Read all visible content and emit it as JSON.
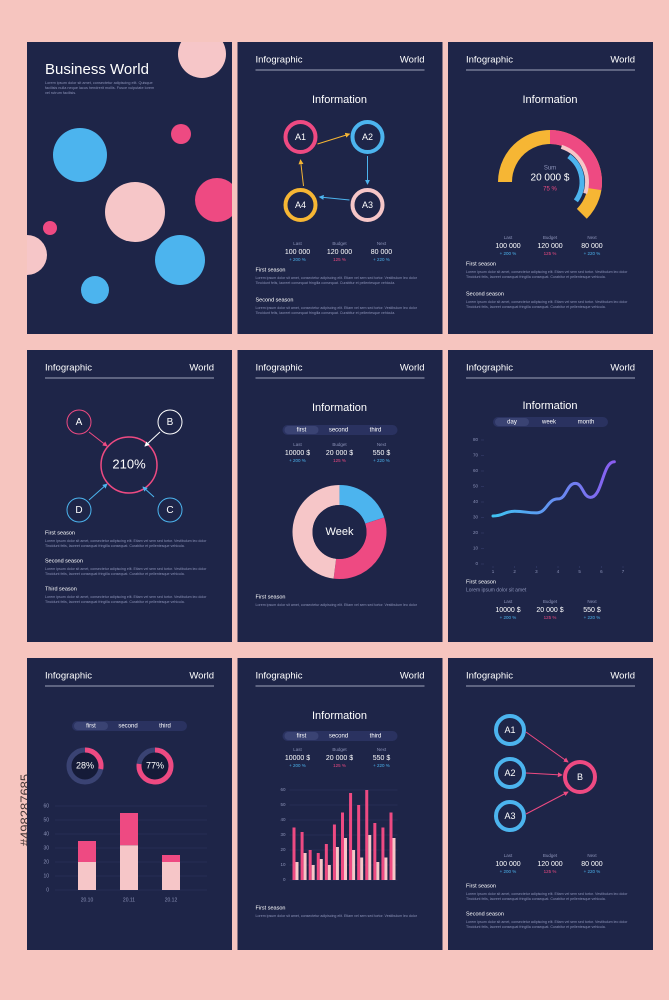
{
  "side_id": "#498287685",
  "cards": [
    {
      "kind": "cover",
      "title": "Business World",
      "text": [
        "Lorem ipsum dolor sit amet, consectetur adipiscing elit. Quisque",
        "facilisis nulla neque lacus hendrerit mollis. Fusce vulputate lorem",
        "vel rutrum facilisis."
      ]
    },
    {
      "kind": "cycle",
      "header": {
        "left": "Infographic",
        "right": "World"
      },
      "title": "Information",
      "nodes": [
        "A1",
        "A2",
        "A3",
        "A4"
      ],
      "stats": [
        {
          "label": "Last",
          "value": "100 000",
          "change": "+ 200 %"
        },
        {
          "label": "Budget",
          "value": "120 000",
          "change": "125 %"
        },
        {
          "label": "Next",
          "value": "80 000",
          "change": "+ 220 %"
        }
      ],
      "sections": [
        {
          "title": "First season",
          "text": [
            "Lorem ipsum dolor sit amet, consectetur adipiscing elit. Etiam vel sem sed tortor. Vestibulum leo dolor",
            "Tincidunt felis, laoreet consequat fringilla consequat. Curabitur et pellentesque vehicula."
          ]
        },
        {
          "title": "Second season",
          "text": [
            "Lorem ipsum dolor sit amet, consectetur adipiscing elit. Etiam vel sem sed tortor. Vestibulum leo dolor",
            "Tincidunt felis, laoreet consequat fringilla consequat. Curabitur et pellentesque vehicula."
          ]
        }
      ]
    },
    {
      "kind": "gauge",
      "header": {
        "left": "Infographic",
        "right": "World"
      },
      "title": "Information",
      "sum_label": "Sum",
      "sum": "20 000 $",
      "percent": "75 %",
      "stats": [
        {
          "label": "Last",
          "value": "100 000",
          "change": "+ 200 %"
        },
        {
          "label": "Budget",
          "value": "120 000",
          "change": "125 %"
        },
        {
          "label": "Next",
          "value": "80 000",
          "change": "+ 220 %"
        }
      ],
      "sections": [
        {
          "title": "First season",
          "text": [
            "Lorem ipsum dolor sit amet, consectetur adipiscing elit. Etiam vel sem sed tortor. Vestibulum leo dolor",
            "Tincidunt felis, laoreet consequat fringilla consequat. Curabitur et pellentesque vehicula."
          ]
        },
        {
          "title": "Second season",
          "text": [
            "Lorem ipsum dolor sit amet, consectetur adipiscing elit. Etiam vel sem sed tortor. Vestibulum leo dolor",
            "Tincidunt felis, laoreet consequat fringilla consequat. Curabitur et pellentesque vehicula."
          ]
        }
      ]
    },
    {
      "kind": "merge",
      "header": {
        "left": "Infographic",
        "right": "World"
      },
      "nodes": [
        "A",
        "B",
        "C",
        "D"
      ],
      "center": "210%",
      "sections": [
        {
          "title": "First season",
          "text": [
            "Lorem ipsum dolor sit amet, consectetur adipiscing elit. Etiam vel sem sed tortor. Vestibulum leo dolor",
            "Tincidunt felis, laoreet consequat fringilla consequat. Curabitur et pellentesque vehicula."
          ]
        },
        {
          "title": "Second season",
          "text": [
            "Lorem ipsum dolor sit amet, consectetur adipiscing elit. Etiam vel sem sed tortor. Vestibulum leo dolor",
            "Tincidunt felis, laoreet consequat fringilla consequat. Curabitur et pellentesque vehicula."
          ]
        },
        {
          "title": "Third season",
          "text": [
            "Lorem ipsum dolor sit amet, consectetur adipiscing elit. Etiam vel sem sed tortor. Vestibulum leo dolor",
            "Tincidunt felis, laoreet consequat fringilla consequat. Curabitur et pellentesque vehicula."
          ]
        }
      ]
    },
    {
      "kind": "donut",
      "header": {
        "left": "Infographic",
        "right": "World"
      },
      "title": "Information",
      "tabs": [
        "first",
        "second",
        "third"
      ],
      "stats": [
        {
          "label": "Last",
          "value": "10000 $",
          "change": "+ 200 %"
        },
        {
          "label": "Budget",
          "value": "20 000 $",
          "change": "125 %"
        },
        {
          "label": "Next",
          "value": "550 $",
          "change": "+ 220 %"
        }
      ],
      "center": "Week",
      "segments": [
        {
          "value": 20,
          "color": "#4cb4ee"
        },
        {
          "value": 32,
          "color": "#ee4a82"
        },
        {
          "value": 48,
          "color": "#f6c6c8"
        }
      ],
      "sections": [
        {
          "title": "First season",
          "text": [
            "Lorem ipsum dolor sit amet, consectetur adipiscing elit. Etiam vel sem sed tortor. Vestibulum leo dolor"
          ]
        }
      ]
    },
    {
      "kind": "line",
      "header": {
        "left": "Infographic",
        "right": "World"
      },
      "title": "Information",
      "tabs": [
        "day",
        "week",
        "month"
      ],
      "x": [
        1,
        2,
        3,
        4,
        4.8,
        5.5,
        6.6
      ],
      "y": [
        31,
        34,
        33,
        42,
        52,
        43,
        66
      ],
      "xlim": [
        1,
        7
      ],
      "xticks": [
        1,
        2,
        3,
        4,
        5,
        6,
        7
      ],
      "ylim": [
        0,
        80
      ],
      "yticks": [
        0,
        10,
        20,
        30,
        40,
        50,
        60,
        70,
        80
      ],
      "caption": "First season",
      "caption_text": "Lorem ipsum dolor sit amet",
      "stats": [
        {
          "label": "Last",
          "value": "10000 $",
          "change": "+ 200 %"
        },
        {
          "label": "Budget",
          "value": "20 000 $",
          "change": "125 %"
        },
        {
          "label": "Next",
          "value": "550 $",
          "change": "+ 220 %"
        }
      ]
    },
    {
      "kind": "stacked",
      "header": {
        "left": "Infographic",
        "right": "World"
      },
      "tabs": [
        "first",
        "second",
        "third"
      ],
      "rings": [
        {
          "value": 28,
          "label": "28%"
        },
        {
          "value": 77,
          "label": "77%"
        }
      ],
      "categories": [
        "20.10",
        "20.11",
        "20.12"
      ],
      "ylim": [
        0,
        60
      ],
      "yticks": [
        0,
        10,
        20,
        30,
        40,
        50,
        60
      ],
      "series": [
        {
          "color": "#f6c6c8",
          "values": [
            20,
            32,
            20
          ]
        },
        {
          "color": "#ee4a82",
          "values": [
            15,
            23,
            5
          ]
        }
      ]
    },
    {
      "kind": "bars",
      "header": {
        "left": "Infographic",
        "right": "World"
      },
      "title": "Information",
      "tabs": [
        "first",
        "second",
        "third"
      ],
      "stats": [
        {
          "label": "Last",
          "value": "10000 $",
          "change": "+ 200 %"
        },
        {
          "label": "Budget",
          "value": "20 000 $",
          "change": "125 %"
        },
        {
          "label": "Next",
          "value": "550 $",
          "change": "+ 220 %"
        }
      ],
      "ylim": [
        0,
        60
      ],
      "yticks": [
        0,
        10,
        20,
        30,
        40,
        50,
        60
      ],
      "series": [
        {
          "color": "#ee4a82",
          "values": [
            35,
            32,
            20,
            18,
            24,
            37,
            45,
            58,
            50,
            60,
            38,
            35,
            45
          ]
        },
        {
          "color": "#f6c6c8",
          "values": [
            12,
            18,
            10,
            14,
            10,
            22,
            28,
            20,
            15,
            30,
            12,
            15,
            28
          ]
        }
      ],
      "sections": [
        {
          "title": "First season",
          "text": [
            "Lorem ipsum dolor sit amet, consectetur adipiscing elit. Etiam vel sem sed tortor. Vestibulum leo dolor"
          ]
        }
      ]
    },
    {
      "kind": "converge",
      "header": {
        "left": "Infographic",
        "right": "World"
      },
      "nodes": [
        "A1",
        "A2",
        "A3"
      ],
      "target": "B",
      "stats": [
        {
          "label": "Last",
          "value": "100 000",
          "change": "+ 200 %"
        },
        {
          "label": "Budget",
          "value": "120 000",
          "change": "125 %"
        },
        {
          "label": "Next",
          "value": "80 000",
          "change": "+ 220 %"
        }
      ],
      "sections": [
        {
          "title": "First season",
          "text": [
            "Lorem ipsum dolor sit amet, consectetur adipiscing elit. Etiam vel sem sed tortor. Vestibulum leo dolor",
            "Tincidunt felis, laoreet consequat fringilla consequat. Curabitur et pellentesque vehicula."
          ]
        },
        {
          "title": "Second season",
          "text": [
            "Lorem ipsum dolor sit amet, consectetur adipiscing elit. Etiam vel sem sed tortor. Vestibulum leo dolor",
            "Tincidunt felis, laoreet consequat fringilla consequat. Curabitur et pellentesque vehicula."
          ]
        }
      ]
    }
  ]
}
